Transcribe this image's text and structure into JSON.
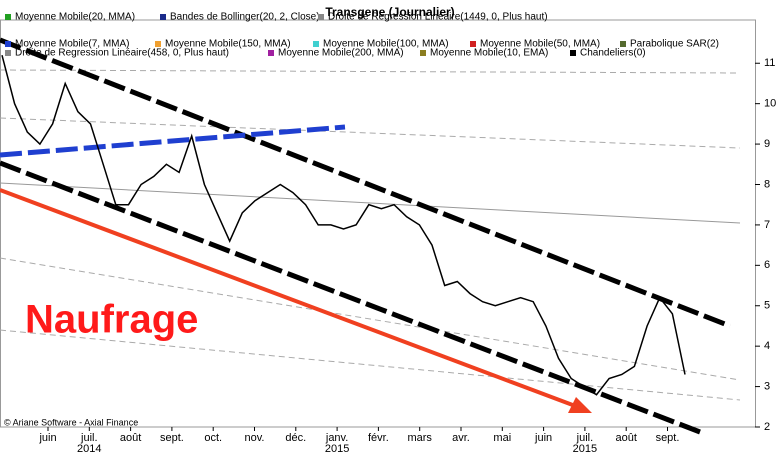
{
  "chart_data": {
    "type": "line",
    "title": "Transgene  (Journalier)",
    "annotation": "Naufrage",
    "copyright": "© Ariane Software - Axial Finance",
    "months": [
      "juin",
      "juil.",
      "août",
      "sept.",
      "oct.",
      "nov.",
      "déc.",
      "janv.",
      "févr.",
      "mars",
      "avr.",
      "mai",
      "juin",
      "juil.",
      "août",
      "sept."
    ],
    "years": [
      null,
      "2014",
      null,
      null,
      null,
      null,
      null,
      "2015",
      null,
      null,
      null,
      null,
      null,
      "2015",
      null,
      null
    ],
    "ylim": [
      2,
      12.07
    ],
    "yticks": [
      2,
      3,
      4,
      5,
      6,
      7,
      8,
      9,
      10,
      11
    ],
    "grid": false,
    "legend_items": [
      {
        "name": "Moyenne Mobile(20, MMA)",
        "color": "#22a022"
      },
      {
        "name": "Bandes de Bollinger(20, 2, Close)",
        "color": "#1a2a8a"
      },
      {
        "name": "Droite de Regression Linéaire(1449, 0, Plus haut)",
        "color": "#888888"
      },
      {
        "name": "Moyenne Mobile(7, MMA)",
        "color": "#1f3fd0"
      },
      {
        "name": "Moyenne Mobile(150, MMA)",
        "color": "#f0a030"
      },
      {
        "name": "Moyenne Mobile(100, MMA)",
        "color": "#40d0d0"
      },
      {
        "name": "Moyenne Mobile(50, MMA)",
        "color": "#d02020"
      },
      {
        "name": "Parabolique SAR(2)",
        "color": "#556b2f"
      },
      {
        "name": "Droite de Regression Linéaire(458, 0, Plus haut)",
        "color": "#888888"
      },
      {
        "name": "Moyenne Mobile(200, MMA)",
        "color": "#a020a0"
      },
      {
        "name": "Moyenne Mobile(10, EMA)",
        "color": "#8b7d20"
      }
    ],
    "series": [
      {
        "name": "Chandeliers(0)",
        "color": "#000000",
        "values": [
          11.2,
          10.0,
          9.3,
          9.0,
          9.5,
          10.5,
          9.8,
          9.5,
          8.5,
          7.5,
          7.5,
          8.0,
          8.2,
          8.5,
          8.3,
          9.2,
          8.0,
          7.3,
          6.6,
          7.3,
          7.6,
          7.8,
          8.0,
          7.8,
          7.5,
          7.0,
          7.0,
          6.9,
          7.0,
          7.5,
          7.4,
          7.5,
          7.2,
          7.0,
          6.5,
          5.5,
          5.6,
          5.3,
          5.1,
          5.0,
          5.1,
          5.2,
          5.1,
          4.5,
          3.7,
          3.2,
          3.0,
          2.8,
          3.2,
          3.3,
          3.5,
          4.5,
          5.2,
          4.8,
          3.3
        ]
      }
    ]
  }
}
